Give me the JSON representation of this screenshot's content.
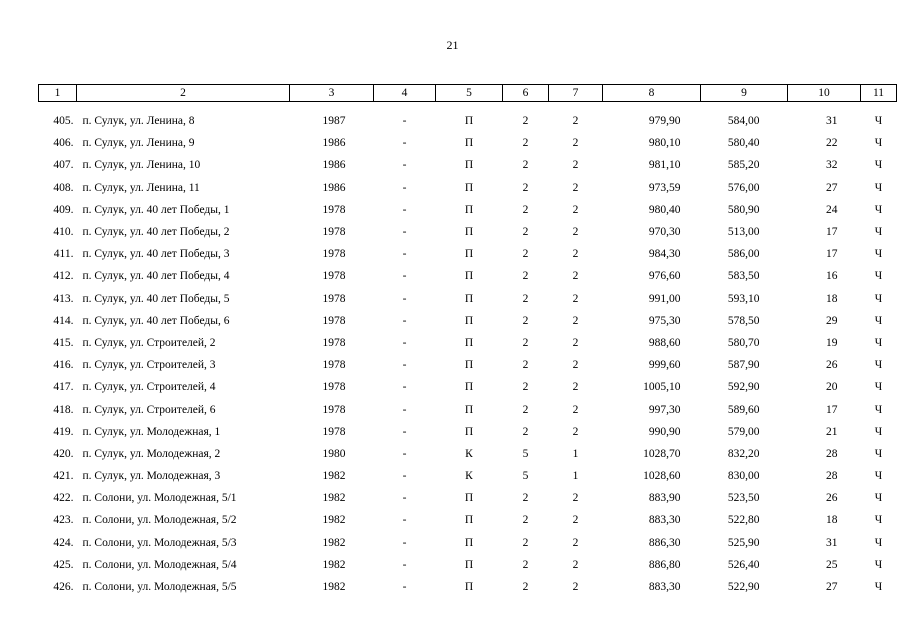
{
  "page_number": "21",
  "headers": [
    "1",
    "2",
    "3",
    "4",
    "5",
    "6",
    "7",
    "8",
    "9",
    "10",
    "11"
  ],
  "rows": [
    [
      "405.",
      "п. Сулук, ул. Ленина, 8",
      "1987",
      "-",
      "П",
      "2",
      "2",
      "979,90",
      "584,00",
      "31",
      "Ч"
    ],
    [
      "406.",
      "п. Сулук, ул. Ленина, 9",
      "1986",
      "-",
      "П",
      "2",
      "2",
      "980,10",
      "580,40",
      "22",
      "Ч"
    ],
    [
      "407.",
      "п. Сулук, ул. Ленина, 10",
      "1986",
      "-",
      "П",
      "2",
      "2",
      "981,10",
      "585,20",
      "32",
      "Ч"
    ],
    [
      "408.",
      "п. Сулук, ул. Ленина, 11",
      "1986",
      "-",
      "П",
      "2",
      "2",
      "973,59",
      "576,00",
      "27",
      "Ч"
    ],
    [
      "409.",
      "п. Сулук, ул. 40 лет Победы, 1",
      "1978",
      "-",
      "П",
      "2",
      "2",
      "980,40",
      "580,90",
      "24",
      "Ч"
    ],
    [
      "410.",
      "п. Сулук, ул. 40 лет Победы, 2",
      "1978",
      "-",
      "П",
      "2",
      "2",
      "970,30",
      "513,00",
      "17",
      "Ч"
    ],
    [
      "411.",
      "п. Сулук, ул. 40 лет Победы, 3",
      "1978",
      "-",
      "П",
      "2",
      "2",
      "984,30",
      "586,00",
      "17",
      "Ч"
    ],
    [
      "412.",
      "п. Сулук, ул. 40 лет Победы, 4",
      "1978",
      "-",
      "П",
      "2",
      "2",
      "976,60",
      "583,50",
      "16",
      "Ч"
    ],
    [
      "413.",
      "п. Сулук, ул. 40 лет Победы, 5",
      "1978",
      "-",
      "П",
      "2",
      "2",
      "991,00",
      "593,10",
      "18",
      "Ч"
    ],
    [
      "414.",
      "п. Сулук, ул. 40 лет Победы, 6",
      "1978",
      "-",
      "П",
      "2",
      "2",
      "975,30",
      "578,50",
      "29",
      "Ч"
    ],
    [
      "415.",
      "п. Сулук, ул. Строителей, 2",
      "1978",
      "-",
      "П",
      "2",
      "2",
      "988,60",
      "580,70",
      "19",
      "Ч"
    ],
    [
      "416.",
      "п. Сулук, ул. Строителей, 3",
      "1978",
      "-",
      "П",
      "2",
      "2",
      "999,60",
      "587,90",
      "26",
      "Ч"
    ],
    [
      "417.",
      "п. Сулук, ул. Строителей, 4",
      "1978",
      "-",
      "П",
      "2",
      "2",
      "1005,10",
      "592,90",
      "20",
      "Ч"
    ],
    [
      "418.",
      "п. Сулук, ул. Строителей, 6",
      "1978",
      "-",
      "П",
      "2",
      "2",
      "997,30",
      "589,60",
      "17",
      "Ч"
    ],
    [
      "419.",
      "п. Сулук, ул. Молодежная, 1",
      "1978",
      "-",
      "П",
      "2",
      "2",
      "990,90",
      "579,00",
      "21",
      "Ч"
    ],
    [
      "420.",
      "п. Сулук, ул. Молодежная, 2",
      "1980",
      "-",
      "К",
      "5",
      "1",
      "1028,70",
      "832,20",
      "28",
      "Ч"
    ],
    [
      "421.",
      "п. Сулук, ул. Молодежная, 3",
      "1982",
      "-",
      "К",
      "5",
      "1",
      "1028,60",
      "830,00",
      "28",
      "Ч"
    ],
    [
      "422.",
      "п. Солони, ул. Молодежная, 5/1",
      "1982",
      "-",
      "П",
      "2",
      "2",
      "883,90",
      "523,50",
      "26",
      "Ч"
    ],
    [
      "423.",
      "п. Солони, ул. Молодежная, 5/2",
      "1982",
      "-",
      "П",
      "2",
      "2",
      "883,30",
      "522,80",
      "18",
      "Ч"
    ],
    [
      "424.",
      "п. Солони, ул. Молодежная, 5/3",
      "1982",
      "-",
      "П",
      "2",
      "2",
      "886,30",
      "525,90",
      "31",
      "Ч"
    ],
    [
      "425.",
      "п. Солони, ул. Молодежная, 5/4",
      "1982",
      "-",
      "П",
      "2",
      "2",
      "886,80",
      "526,40",
      "25",
      "Ч"
    ],
    [
      "426.",
      "п. Солони, ул. Молодежная, 5/5",
      "1982",
      "-",
      "П",
      "2",
      "2",
      "883,30",
      "522,90",
      "27",
      "Ч"
    ]
  ]
}
